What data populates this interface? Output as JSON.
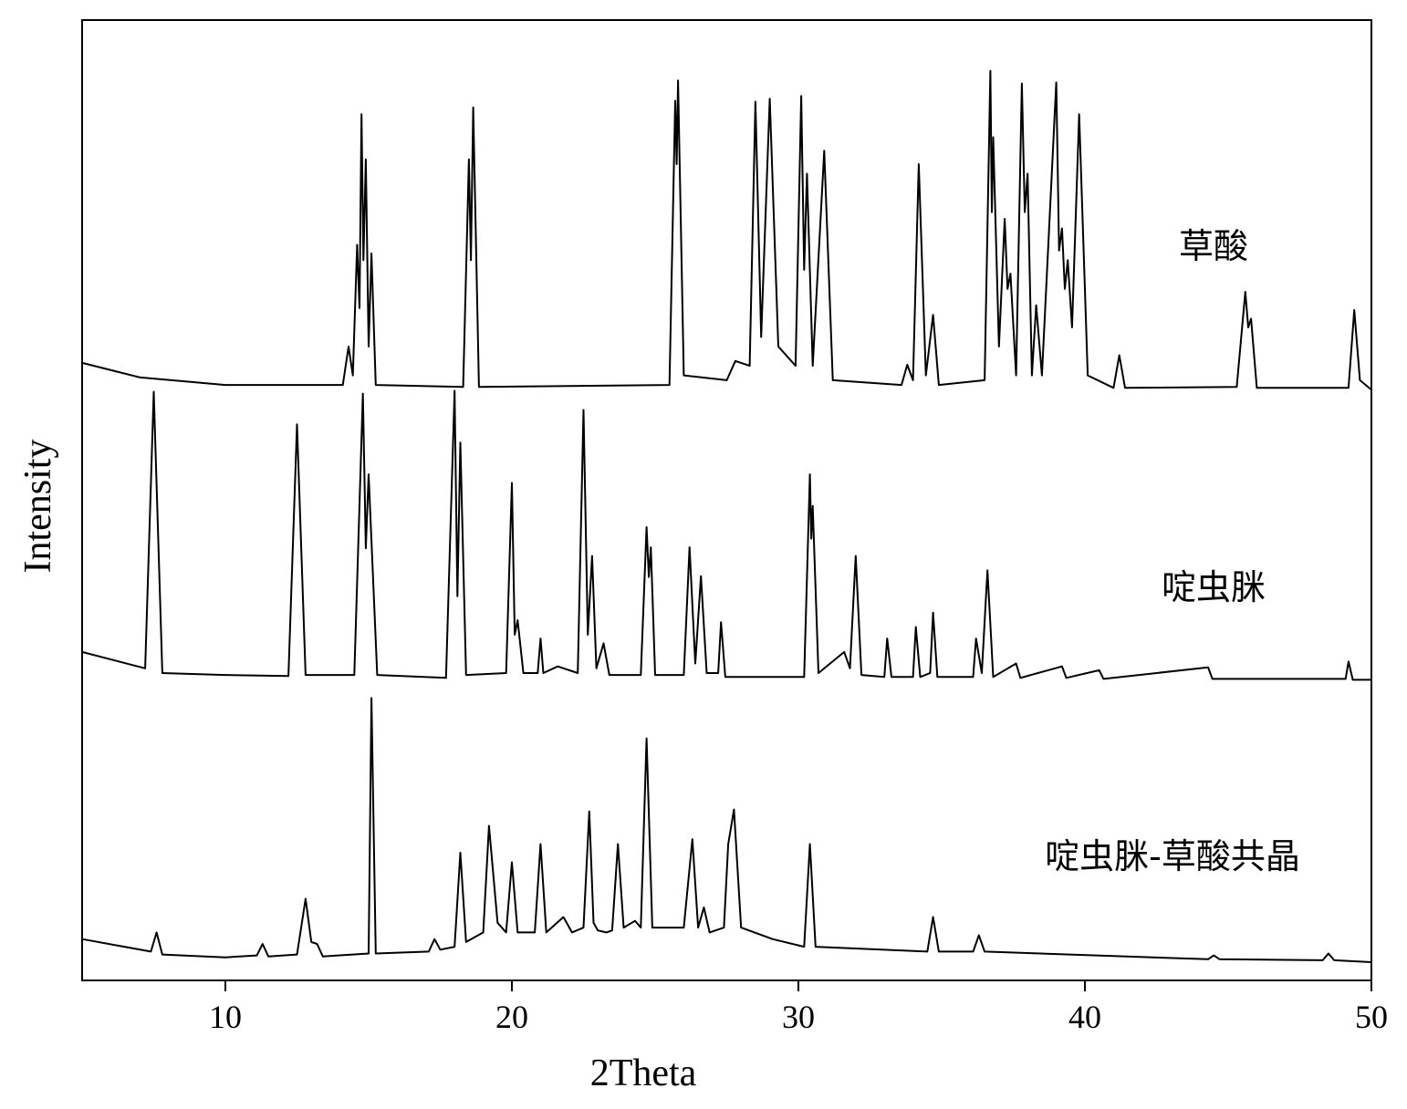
{
  "chart_data": {
    "type": "line",
    "xlabel": "2Theta",
    "ylabel": "Intensity",
    "xlim": [
      5,
      50
    ],
    "xticks": [
      10,
      20,
      30,
      40,
      50
    ],
    "ylim": [
      0,
      100
    ],
    "annotations": [
      {
        "text": "草酸"
      },
      {
        "text": "啶虫脒"
      },
      {
        "text": "啶虫脒-草酸共晶"
      }
    ],
    "series": [
      {
        "color": "#000000",
        "x": [
          5,
          7,
          10,
          14.1,
          14.3,
          14.45,
          14.6,
          14.68,
          14.75,
          14.82,
          14.9,
          15.0,
          15.1,
          15.25,
          18.3,
          18.5,
          18.57,
          18.65,
          18.85,
          25.5,
          25.7,
          25.75,
          25.8,
          26.0,
          27.5,
          27.8,
          28.3,
          28.5,
          28.7,
          29.0,
          29.3,
          29.9,
          30.1,
          30.2,
          30.3,
          30.5,
          30.9,
          31.2,
          33.6,
          33.8,
          34.0,
          34.2,
          34.45,
          34.7,
          34.9,
          36.5,
          36.7,
          36.75,
          36.8,
          37.0,
          37.2,
          37.3,
          37.4,
          37.6,
          37.8,
          37.9,
          38.0,
          38.15,
          38.3,
          38.5,
          39.0,
          39.1,
          39.2,
          39.3,
          39.4,
          39.55,
          39.8,
          40.1,
          41.0,
          41.2,
          41.4,
          45.3,
          45.6,
          45.7,
          45.8,
          46.0,
          49.2,
          49.4,
          49.6,
          50
        ],
        "values": [
          64.3,
          62.8,
          62.0,
          62.0,
          66.0,
          63,
          76.6,
          70,
          90.2,
          75,
          85.5,
          66,
          75.7,
          62.0,
          61.8,
          85.5,
          75,
          90.9,
          61.8,
          62,
          91.6,
          85,
          93.7,
          63,
          62.5,
          64.5,
          64,
          91.5,
          67,
          91.8,
          66,
          64,
          92.1,
          74,
          84.0,
          64,
          86.4,
          62.5,
          62,
          64.1,
          62.5,
          85.0,
          63,
          69.3,
          62,
          62.5,
          94.7,
          80,
          87.8,
          66,
          79.3,
          72,
          73.6,
          63,
          93.4,
          80,
          84.0,
          63,
          70.3,
          63,
          93.5,
          76,
          78.3,
          72,
          75.0,
          68,
          90.2,
          63,
          61.7,
          65.1,
          61.7,
          61.8,
          71.7,
          68,
          68.9,
          61.7,
          61.7,
          69.8,
          62.5,
          61.5
        ]
      },
      {
        "color": "#000000",
        "x": [
          5,
          7.2,
          7.5,
          7.8,
          10,
          12.2,
          12.5,
          12.8,
          14.5,
          14.8,
          14.9,
          15.0,
          15.3,
          17.7,
          18.0,
          18.1,
          18.2,
          18.4,
          19.8,
          20.0,
          20.1,
          20.2,
          20.4,
          20.9,
          21.0,
          21.1,
          21.6,
          22.3,
          22.5,
          22.65,
          22.8,
          22.95,
          23.2,
          23.4,
          24.5,
          24.7,
          24.78,
          24.85,
          25.0,
          26.0,
          26.2,
          26.4,
          26.6,
          26.8,
          27.2,
          27.3,
          27.45,
          30.2,
          30.4,
          30.45,
          30.5,
          30.7,
          31.6,
          31.8,
          32.0,
          32.2,
          33.0,
          33.1,
          33.25,
          34.0,
          34.1,
          34.25,
          34.6,
          34.7,
          34.85,
          36.1,
          36.2,
          36.4,
          36.6,
          36.8,
          37.6,
          37.75,
          39.2,
          39.35,
          40.5,
          40.65,
          44.3,
          44.45,
          49.1,
          49.2,
          49.35,
          50
        ],
        "values": [
          34.2,
          32.5,
          61.3,
          32.0,
          31.8,
          31.7,
          57.9,
          31.8,
          31.8,
          61.1,
          45,
          52.7,
          31.8,
          31.5,
          61.4,
          40,
          56.0,
          31.8,
          32,
          51.8,
          36,
          37.5,
          32,
          32,
          35.6,
          32,
          32.7,
          32,
          59.4,
          36,
          44.2,
          32.5,
          35.1,
          31.8,
          31.8,
          47.2,
          42,
          45.1,
          31.8,
          31.8,
          45.1,
          33,
          42.1,
          32,
          32,
          37.3,
          31.6,
          31.6,
          52.7,
          46,
          49.4,
          32,
          34.2,
          32.5,
          44.2,
          31.8,
          31.6,
          35.6,
          31.6,
          31.6,
          36.8,
          31.6,
          32,
          38.3,
          31.6,
          31.6,
          35.6,
          32,
          42.7,
          31.6,
          33.0,
          31.5,
          32.7,
          31.5,
          32.3,
          31.4,
          32.6,
          31.4,
          31.4,
          33.2,
          31.3,
          31.3
        ]
      },
      {
        "color": "#000000",
        "x": [
          5,
          7.4,
          7.6,
          7.8,
          10,
          11.1,
          11.3,
          11.5,
          12.5,
          12.8,
          13.0,
          13.2,
          13.4,
          15.0,
          15.1,
          15.25,
          17.1,
          17.3,
          17.5,
          18.0,
          18.2,
          18.4,
          19.0,
          19.2,
          19.5,
          19.8,
          20.0,
          20.2,
          20.8,
          21.0,
          21.2,
          21.8,
          22.1,
          22.5,
          22.7,
          22.85,
          23.0,
          23.3,
          23.5,
          23.7,
          23.9,
          24.3,
          24.5,
          24.7,
          24.9,
          26.0,
          26.3,
          26.5,
          26.7,
          26.9,
          27.4,
          27.55,
          27.75,
          28.0,
          29.1,
          30.2,
          30.4,
          30.6,
          34.5,
          34.7,
          34.9,
          36.1,
          36.3,
          36.5,
          44.3,
          44.5,
          44.7,
          48.3,
          48.5,
          48.7,
          50
        ],
        "values": [
          4.3,
          3.0,
          5.0,
          2.7,
          2.4,
          2.6,
          3.8,
          2.5,
          2.7,
          8.5,
          4,
          3.8,
          2.5,
          2.8,
          29.4,
          2.8,
          3,
          4.3,
          3.2,
          3.5,
          13.3,
          4,
          5,
          16.1,
          6,
          5,
          12.3,
          5,
          5,
          14.2,
          5,
          6.6,
          5,
          5.5,
          17.6,
          6,
          5.2,
          5,
          5.2,
          14.2,
          5.5,
          6.2,
          5.5,
          25.2,
          5.5,
          5.5,
          14.7,
          5.5,
          7.6,
          5,
          5.5,
          14.2,
          17.8,
          5.5,
          4.3,
          3.5,
          14.2,
          3.5,
          3,
          6.6,
          3,
          3,
          4.7,
          3,
          2.2,
          2.6,
          2.2,
          2.1,
          2.8,
          2.1,
          1.9
        ]
      }
    ]
  }
}
